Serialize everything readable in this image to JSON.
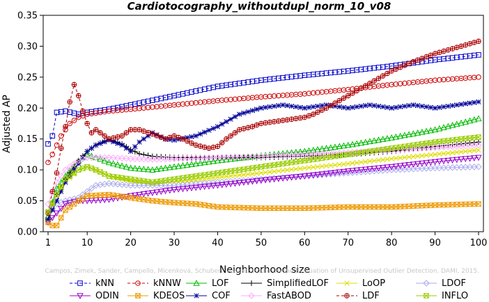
{
  "chart_data": {
    "type": "line",
    "title": "Cardiotocography_withoutdupl_norm_10_v08",
    "xlabel": "Neighborhood size",
    "ylabel": "Adjusted AP",
    "xlim": [
      1,
      100
    ],
    "ylim": [
      0,
      0.35
    ],
    "x_ticks": [
      1,
      10,
      20,
      30,
      40,
      50,
      60,
      70,
      80,
      90,
      100
    ],
    "y_ticks": [
      0.0,
      0.05,
      0.1,
      0.15,
      0.2,
      0.25,
      0.3,
      0.35
    ],
    "y_tick_labels": [
      "0.00",
      "0.05",
      "0.10",
      "0.15",
      "0.20",
      "0.25",
      "0.30",
      "0.35"
    ],
    "grid": false,
    "legend_position": "bottom",
    "watermark": "Campos, Zimek, Sander, Campello, Micenková, Schubert, Assent, Houle  On the Evaluation of Unsupervised Outlier Detection. DAMI, 2015.",
    "series": [
      {
        "name": "kNN",
        "color": "#0000cc",
        "marker": "square",
        "dash": "4,3",
        "x": [
          1,
          2,
          3,
          5,
          8,
          10,
          15,
          20,
          30,
          40,
          50,
          60,
          70,
          80,
          90,
          100
        ],
        "y": [
          0.142,
          0.155,
          0.193,
          0.195,
          0.19,
          0.193,
          0.198,
          0.205,
          0.22,
          0.235,
          0.245,
          0.253,
          0.26,
          0.268,
          0.278,
          0.286
        ]
      },
      {
        "name": "kNNW",
        "color": "#cc0000",
        "marker": "circle",
        "dash": "4,3",
        "x": [
          1,
          2,
          3,
          4,
          5,
          6,
          8,
          10,
          15,
          20,
          30,
          40,
          50,
          60,
          70,
          80,
          90,
          100
        ],
        "y": [
          0.112,
          0.125,
          0.14,
          0.155,
          0.165,
          0.175,
          0.185,
          0.19,
          0.195,
          0.198,
          0.205,
          0.212,
          0.218,
          0.223,
          0.23,
          0.238,
          0.245,
          0.25
        ]
      },
      {
        "name": "LOF",
        "color": "#00bb00",
        "marker": "triangle-up",
        "dash": "",
        "x": [
          1,
          3,
          5,
          8,
          10,
          12,
          15,
          20,
          25,
          30,
          40,
          50,
          60,
          70,
          80,
          90,
          100
        ],
        "y": [
          0.025,
          0.07,
          0.09,
          0.115,
          0.125,
          0.12,
          0.112,
          0.103,
          0.1,
          0.105,
          0.115,
          0.123,
          0.13,
          0.14,
          0.152,
          0.165,
          0.183
        ]
      },
      {
        "name": "SimplifiedLOF",
        "color": "#000000",
        "marker": "plus",
        "dash": "",
        "x": [
          1,
          2,
          3,
          5,
          8,
          10,
          12,
          15,
          18,
          20,
          22,
          25,
          30,
          40,
          50,
          60,
          70,
          80,
          90,
          100
        ],
        "y": [
          0.02,
          0.045,
          0.06,
          0.085,
          0.115,
          0.13,
          0.14,
          0.15,
          0.142,
          0.133,
          0.126,
          0.122,
          0.12,
          0.12,
          0.12,
          0.122,
          0.125,
          0.13,
          0.138,
          0.145
        ]
      },
      {
        "name": "LoOP",
        "color": "#dddd00",
        "marker": "x",
        "dash": "",
        "x": [
          1,
          3,
          5,
          8,
          10,
          15,
          20,
          25,
          30,
          40,
          50,
          60,
          70,
          80,
          90,
          100
        ],
        "y": [
          0.03,
          0.06,
          0.08,
          0.1,
          0.105,
          0.09,
          0.082,
          0.078,
          0.08,
          0.088,
          0.095,
          0.103,
          0.11,
          0.118,
          0.125,
          0.132
        ]
      },
      {
        "name": "LDOF",
        "color": "#aaaaee",
        "marker": "diamond",
        "dash": "",
        "x": [
          1,
          3,
          5,
          8,
          10,
          12,
          15,
          20,
          25,
          30,
          40,
          50,
          60,
          70,
          80,
          90,
          100
        ],
        "y": [
          0.03,
          0.045,
          0.05,
          0.055,
          0.065,
          0.075,
          0.078,
          0.075,
          0.075,
          0.075,
          0.08,
          0.085,
          0.09,
          0.095,
          0.1,
          0.103,
          0.105
        ]
      },
      {
        "name": "ODIN",
        "color": "#9900cc",
        "marker": "triangle-down",
        "dash": "",
        "x": [
          1,
          3,
          5,
          8,
          10,
          15,
          20,
          25,
          30,
          40,
          50,
          60,
          70,
          80,
          90,
          100
        ],
        "y": [
          0.015,
          0.03,
          0.045,
          0.05,
          0.05,
          0.052,
          0.058,
          0.063,
          0.068,
          0.075,
          0.083,
          0.09,
          0.098,
          0.105,
          0.113,
          0.12
        ]
      },
      {
        "name": "KDEOS",
        "color": "#ee9900",
        "marker": "square-x",
        "dash": "",
        "x": [
          1,
          2,
          3,
          5,
          8,
          10,
          15,
          20,
          25,
          30,
          35,
          40,
          50,
          60,
          70,
          80,
          90,
          100
        ],
        "y": [
          0.015,
          0.01,
          0.01,
          0.035,
          0.05,
          0.058,
          0.06,
          0.055,
          0.05,
          0.047,
          0.045,
          0.04,
          0.038,
          0.038,
          0.04,
          0.04,
          0.043,
          0.045
        ]
      },
      {
        "name": "COF",
        "color": "#000099",
        "marker": "star",
        "dash": "",
        "x": [
          1,
          3,
          5,
          8,
          10,
          12,
          15,
          18,
          20,
          22,
          25,
          28,
          30,
          35,
          40,
          45,
          50,
          55,
          60,
          65,
          70,
          75,
          80,
          85,
          90,
          95,
          100
        ],
        "y": [
          0.02,
          0.05,
          0.08,
          0.11,
          0.13,
          0.14,
          0.148,
          0.14,
          0.13,
          0.145,
          0.16,
          0.15,
          0.148,
          0.155,
          0.17,
          0.19,
          0.2,
          0.205,
          0.2,
          0.205,
          0.2,
          0.205,
          0.2,
          0.205,
          0.2,
          0.205,
          0.21
        ]
      },
      {
        "name": "FastABOD",
        "color": "#ffaaff",
        "marker": "diamond",
        "dash": "",
        "x": [
          1,
          3,
          5,
          8,
          10,
          15,
          20,
          25,
          30,
          40,
          50,
          60,
          70,
          80,
          90,
          100
        ],
        "y": [
          0.045,
          0.08,
          0.1,
          0.115,
          0.12,
          0.12,
          0.118,
          0.117,
          0.118,
          0.12,
          0.122,
          0.125,
          0.128,
          0.132,
          0.136,
          0.14
        ]
      },
      {
        "name": "LDF",
        "color": "#aa0000",
        "marker": "circle-plus",
        "dash": "4,3",
        "x": [
          1,
          2,
          3,
          4,
          5,
          6,
          7,
          8,
          9,
          10,
          11,
          12,
          15,
          18,
          20,
          22,
          25,
          28,
          30,
          32,
          35,
          38,
          40,
          42,
          45,
          48,
          50,
          55,
          60,
          62,
          65,
          70,
          75,
          80,
          85,
          90,
          95,
          100
        ],
        "y": [
          0.03,
          0.065,
          0.095,
          0.135,
          0.17,
          0.21,
          0.238,
          0.22,
          0.195,
          0.175,
          0.16,
          0.165,
          0.15,
          0.155,
          0.165,
          0.165,
          0.158,
          0.15,
          0.155,
          0.15,
          0.14,
          0.135,
          0.138,
          0.15,
          0.165,
          0.17,
          0.175,
          0.18,
          0.185,
          0.19,
          0.2,
          0.22,
          0.24,
          0.26,
          0.275,
          0.288,
          0.298,
          0.308
        ]
      },
      {
        "name": "INFLO",
        "color": "#99cc00",
        "marker": "square-x",
        "dash": "",
        "x": [
          1,
          3,
          5,
          8,
          10,
          12,
          15,
          20,
          25,
          30,
          40,
          50,
          60,
          70,
          80,
          90,
          100
        ],
        "y": [
          0.032,
          0.06,
          0.085,
          0.1,
          0.105,
          0.1,
          0.09,
          0.085,
          0.08,
          0.085,
          0.095,
          0.105,
          0.115,
          0.125,
          0.135,
          0.145,
          0.153
        ]
      }
    ],
    "legend": [
      [
        "kNN",
        "kNNW",
        "LOF",
        "SimplifiedLOF",
        "LoOP",
        "LDOF"
      ],
      [
        "ODIN",
        "KDEOS",
        "COF",
        "FastABOD",
        "LDF",
        "INFLO"
      ]
    ]
  }
}
